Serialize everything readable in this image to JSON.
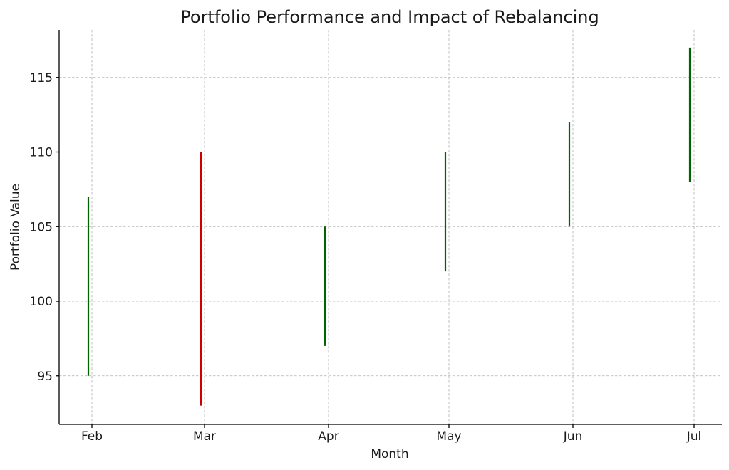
{
  "chart_data": {
    "type": "bar",
    "title": "Portfolio Performance and Impact of Rebalancing",
    "xlabel": "Month",
    "ylabel": "Portfolio Value",
    "categories": [
      "Feb",
      "Mar",
      "Apr",
      "May",
      "Jun",
      "Jul"
    ],
    "series": [
      {
        "low": [
          95,
          93,
          97,
          102,
          105,
          108
        ],
        "high": [
          107,
          110,
          105,
          110,
          112,
          117
        ],
        "colors": [
          "#006400",
          "#cc0000",
          "#006400",
          "#006400",
          "#006400",
          "#006400"
        ]
      }
    ],
    "ylim": [
      92,
      118.2
    ],
    "yticks": [
      95,
      100,
      105,
      110,
      115
    ],
    "grid": true
  }
}
